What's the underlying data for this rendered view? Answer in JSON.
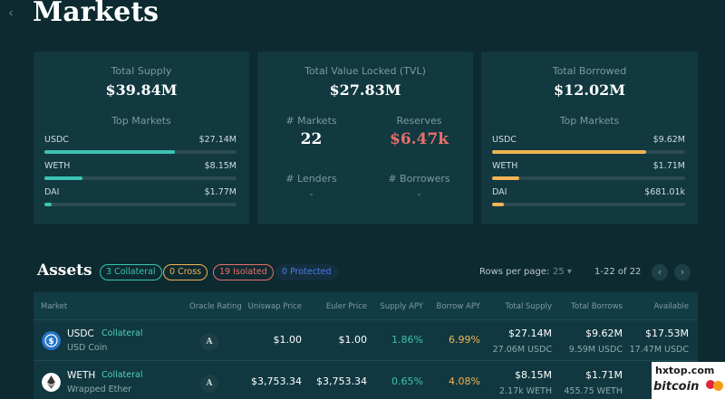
{
  "header": {
    "back_icon": "chevron-left-icon",
    "title": "Markets"
  },
  "supply_card": {
    "label": "Total Supply",
    "value": "$39.84M",
    "top_label": "Top Markets",
    "bar_color": "#3cc3b4",
    "markets": [
      {
        "name": "USDC",
        "value": "$27.14M",
        "share": 0.68
      },
      {
        "name": "WETH",
        "value": "$8.15M",
        "share": 0.2
      },
      {
        "name": "DAI",
        "value": "$1.77M",
        "share": 0.04
      }
    ]
  },
  "tvl_card": {
    "label": "Total Value Locked (TVL)",
    "value": "$27.83M",
    "markets_label": "# Markets",
    "markets_value": "22",
    "reserves_label": "Reserves",
    "reserves_value": "$6.47k",
    "reserves_color": "#e8706a",
    "lenders_label": "# Lenders",
    "lenders_value": "-",
    "borrowers_label": "# Borrowers",
    "borrowers_value": "-"
  },
  "borrowed_card": {
    "label": "Total Borrowed",
    "value": "$12.02M",
    "top_label": "Top Markets",
    "bar_color": "#f0b455",
    "markets": [
      {
        "name": "USDC",
        "value": "$9.62M",
        "share": 0.8
      },
      {
        "name": "WETH",
        "value": "$1.71M",
        "share": 0.14
      },
      {
        "name": "DAI",
        "value": "$681.01k",
        "share": 0.06
      }
    ]
  },
  "assets": {
    "title": "Assets",
    "filters": [
      {
        "label": "3 Collateral",
        "color": "#3cc3b4"
      },
      {
        "label": "0 Cross",
        "color": "#f0b455"
      },
      {
        "label": "19 Isolated",
        "color": "#e8706a"
      },
      {
        "label": "0 Protected",
        "color": "#4a7cf0"
      }
    ],
    "rows_per_page_label": "Rows per page:",
    "rows_per_page_value": "25",
    "range_text": "1-22 of 22",
    "prev_icon": "chevron-left-icon",
    "next_icon": "chevron-right-icon"
  },
  "table": {
    "headers": [
      "Market",
      "Oracle Rating",
      "Uniswap Price",
      "Euler Price",
      "Supply APY",
      "Borrow APY",
      "Total Supply",
      "Total Borrows",
      "Available"
    ],
    "apy_supply_color": "#3cc3b4",
    "apy_borrow_color": "#f0b455",
    "rows": [
      {
        "symbol": "USDC",
        "tag": "Collateral",
        "name": "USD Coin",
        "icon": "usdc-coin-icon",
        "icon_color": "#2775ca",
        "oracle": "A",
        "uniswap_price": "$1.00",
        "euler_price": "$1.00",
        "supply_apy": "1.86%",
        "borrow_apy": "6.99%",
        "total_supply": "$27.14M",
        "total_supply_native": "27.06M USDC",
        "total_borrows": "$9.62M",
        "total_borrows_native": "9.59M USDC",
        "available": "$17.53M",
        "available_native": "17.47M USDC"
      },
      {
        "symbol": "WETH",
        "tag": "Collateral",
        "name": "Wrapped Ether",
        "icon": "ether-coin-icon",
        "icon_color": "#ffffff",
        "oracle": "A",
        "uniswap_price": "$3,753.34",
        "euler_price": "$3,753.34",
        "supply_apy": "0.65%",
        "borrow_apy": "4.08%",
        "total_supply": "$8.15M",
        "total_supply_native": "2.17k WETH",
        "total_borrows": "$1.71M",
        "total_borrows_native": "455.75 WETH",
        "available": "",
        "available_native": ""
      }
    ]
  },
  "watermark": {
    "url": "hxtop.com",
    "brand": "bitcoin"
  }
}
